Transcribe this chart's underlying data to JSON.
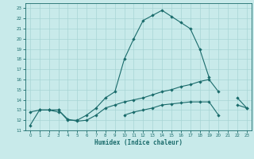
{
  "background_color": "#c8eaea",
  "line_color": "#1a6b6b",
  "grid_color": "#a8d5d5",
  "xlabel": "Humidex (Indice chaleur)",
  "xlim": [
    -0.5,
    23.5
  ],
  "ylim": [
    11,
    23.5
  ],
  "xticks": [
    0,
    1,
    2,
    3,
    4,
    5,
    6,
    7,
    8,
    9,
    10,
    11,
    12,
    13,
    14,
    15,
    16,
    17,
    18,
    19,
    20,
    21,
    22,
    23
  ],
  "yticks": [
    11,
    12,
    13,
    14,
    15,
    16,
    17,
    18,
    19,
    20,
    21,
    22,
    23
  ],
  "line1_y": [
    11.5,
    13.0,
    13.0,
    13.0,
    12.0,
    12.0,
    12.5,
    13.2,
    14.2,
    14.8,
    18.0,
    20.0,
    21.8,
    22.3,
    22.8,
    22.2,
    21.6,
    21.0,
    19.0,
    16.2,
    null,
    null,
    null,
    null
  ],
  "line2_y": [
    12.8,
    13.0,
    13.0,
    13.0,
    12.1,
    11.9,
    12.0,
    12.5,
    13.2,
    13.5,
    13.8,
    14.0,
    14.2,
    14.5,
    14.8,
    15.0,
    15.3,
    15.5,
    15.8,
    16.0,
    14.8,
    null,
    14.2,
    13.2
  ],
  "line3_y": [
    null,
    13.0,
    13.0,
    12.8,
    null,
    null,
    null,
    null,
    null,
    null,
    12.5,
    12.8,
    13.0,
    13.2,
    13.5,
    13.6,
    13.7,
    13.8,
    13.8,
    13.8,
    12.5,
    null,
    13.5,
    13.2
  ]
}
